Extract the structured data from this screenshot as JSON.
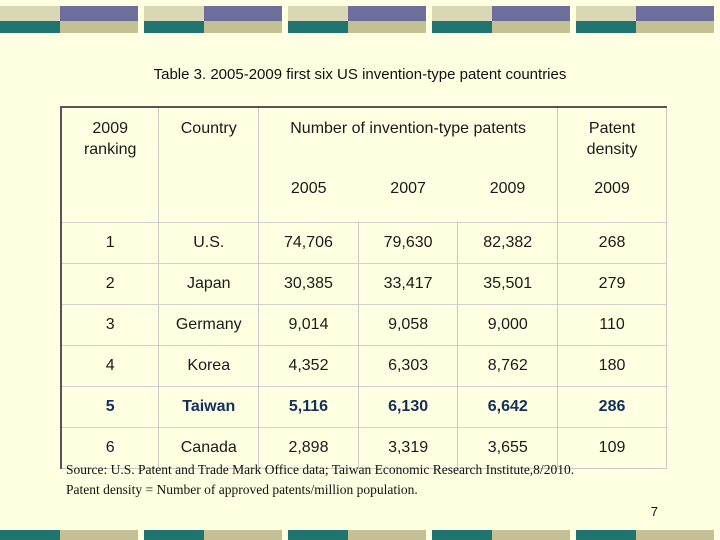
{
  "title": "Table 3. 2005-2009 first six US invention-type patent countries",
  "table": {
    "headers": {
      "ranking": "2009 ranking",
      "country": "Country",
      "patents": "Number of invention-type patents",
      "density": "Patent density",
      "years": [
        "2005",
        "2007",
        "2009"
      ],
      "density_year": "2009"
    },
    "rows": [
      {
        "rank": "1",
        "country": "U.S.",
        "y2005": "74,706",
        "y2007": "79,630",
        "y2009": "82,382",
        "density": "268"
      },
      {
        "rank": "2",
        "country": "Japan",
        "y2005": "30,385",
        "y2007": "33,417",
        "y2009": "35,501",
        "density": "279"
      },
      {
        "rank": "3",
        "country": "Germany",
        "y2005": "9,014",
        "y2007": "9,058",
        "y2009": "9,000",
        "density": "110"
      },
      {
        "rank": "4",
        "country": "Korea",
        "y2005": "4,352",
        "y2007": "6,303",
        "y2009": "8,762",
        "density": "180"
      },
      {
        "rank": "5",
        "country": "Taiwan",
        "y2005": "5,116",
        "y2007": "6,130",
        "y2009": "6,642",
        "density": "286"
      },
      {
        "rank": "6",
        "country": "Canada",
        "y2005": "2,898",
        "y2007": "3,319",
        "y2009": "3,655",
        "density": "109"
      }
    ]
  },
  "source_line1": "Source: U.S. Patent and Trade Mark Office data; Taiwan Economic Research Institute,8/2010.",
  "source_line2": "Patent density = Number of approved patents/million population.",
  "page_number": "7",
  "colors": {
    "background": "#ffffe1",
    "band_tan": "#c4c094",
    "band_navy": "#6c6f9c",
    "band_teal": "#1f7470",
    "highlight_text": "#12305a"
  }
}
